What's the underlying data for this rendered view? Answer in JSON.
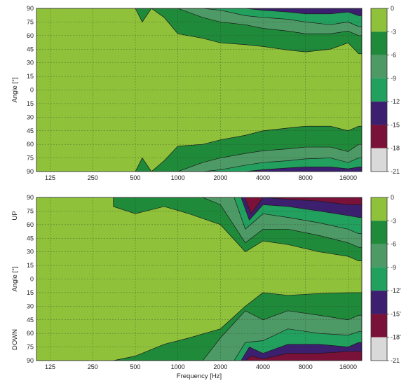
{
  "chart_data": [
    {
      "type": "heatmap",
      "subtype": "filled-contour directivity map",
      "title": "",
      "xlabel": "",
      "ylabel": "Angle [°]",
      "y_side_labels": [],
      "x_scale": "log",
      "xlim": [
        100,
        20000
      ],
      "ylim": [
        -90,
        90
      ],
      "x_ticks": [
        "125",
        "250",
        "500",
        "1000",
        "2000",
        "4000",
        "8000",
        "16000"
      ],
      "y_ticks": [
        "90",
        "75",
        "60",
        "45",
        "30",
        "15",
        "0",
        "15",
        "30",
        "45",
        "60",
        "75",
        "90"
      ],
      "grid": true,
      "colorbar": {
        "position": "right",
        "levels_db": [
          0,
          -3,
          -6,
          -9,
          -12,
          -15,
          -18,
          -21
        ],
        "labels": [
          "0",
          "-3",
          "-6",
          "-9",
          "-12",
          "-15",
          "-18",
          "-21"
        ],
        "colors": [
          "#8fc23a",
          "#1f8a3a",
          "#4e9a66",
          "#22a05e",
          "#3c1f6e",
          "#7a1138",
          "#d9d9d9"
        ]
      },
      "series": [
        {
          "level_db": -3,
          "x_hz": [
            500,
            560,
            650,
            800,
            1000,
            1500,
            2000,
            3000,
            4000,
            6000,
            8000,
            12000,
            16000,
            19000
          ],
          "upper_boundary_deg": [
            90,
            75,
            90,
            80,
            62,
            57,
            52,
            50,
            48,
            44,
            42,
            45,
            52,
            40
          ],
          "lower_boundary_deg": [
            -90,
            -75,
            -90,
            -78,
            -62,
            -60,
            -55,
            -50,
            -45,
            -42,
            -40,
            -40,
            -45,
            -40
          ]
        },
        {
          "level_db": -6,
          "x_hz": [
            1000,
            1500,
            2000,
            3000,
            4000,
            6000,
            8000,
            12000,
            16000,
            19000
          ],
          "upper_boundary_deg": [
            90,
            80,
            75,
            72,
            68,
            65,
            62,
            62,
            65,
            60
          ],
          "lower_boundary_deg": [
            -90,
            -80,
            -75,
            -70,
            -67,
            -65,
            -63,
            -63,
            -68,
            -60
          ]
        },
        {
          "level_db": -9,
          "x_hz": [
            1500,
            2000,
            3000,
            4000,
            6000,
            8000,
            12000,
            16000,
            19000
          ],
          "upper_boundary_deg": [
            90,
            88,
            82,
            80,
            78,
            75,
            72,
            75,
            70
          ],
          "lower_boundary_deg": [
            -90,
            -88,
            -83,
            -80,
            -78,
            -76,
            -75,
            -80,
            -75
          ]
        },
        {
          "level_db": -12,
          "x_hz": [
            3000,
            4000,
            6000,
            8000,
            12000,
            16000,
            19000
          ],
          "upper_boundary_deg": [
            90,
            88,
            86,
            84,
            84,
            86,
            82
          ],
          "lower_boundary_deg": [
            -90,
            -88,
            -86,
            -85,
            -85,
            -87,
            -85
          ]
        }
      ]
    },
    {
      "type": "heatmap",
      "subtype": "filled-contour directivity map",
      "title": "",
      "xlabel": "Frequency [Hz]",
      "ylabel": "Angle [°]",
      "y_side_labels": [
        "UP",
        "DOWN"
      ],
      "x_scale": "log",
      "xlim": [
        100,
        20000
      ],
      "ylim": [
        -90,
        90
      ],
      "x_ticks": [
        "125",
        "250",
        "500",
        "1000",
        "2000",
        "4000",
        "8000",
        "16000"
      ],
      "y_ticks": [
        "90",
        "75",
        "60",
        "45",
        "30",
        "15",
        "0",
        "15",
        "30",
        "45",
        "60",
        "75",
        "90"
      ],
      "grid": true,
      "colorbar": {
        "position": "right",
        "levels_db": [
          0,
          -3,
          -6,
          -9,
          -12,
          -15,
          -18,
          -21
        ],
        "labels": [
          "0",
          "-3",
          "-6",
          "-9",
          "-12'",
          "-15'",
          "-18'",
          "-21"
        ],
        "colors": [
          "#8fc23a",
          "#1f8a3a",
          "#4e9a66",
          "#22a05e",
          "#3c1f6e",
          "#7a1138",
          "#d9d9d9"
        ]
      },
      "series": [
        {
          "level_db": -3,
          "x_hz": [
            350,
            500,
            800,
            1200,
            2000,
            3000,
            4000,
            6000,
            10000,
            16000,
            19000
          ],
          "upper_boundary_deg": [
            80,
            72,
            80,
            72,
            60,
            30,
            42,
            38,
            30,
            25,
            20
          ],
          "lower_boundary_deg": [
            -90,
            -85,
            -72,
            -65,
            -55,
            -30,
            -15,
            -18,
            -16,
            -15,
            -15
          ]
        },
        {
          "level_db": -6,
          "x_hz": [
            1500,
            2000,
            3000,
            4000,
            6000,
            10000,
            16000,
            19000
          ],
          "upper_boundary_deg": [
            90,
            82,
            40,
            55,
            55,
            48,
            40,
            35
          ],
          "lower_boundary_deg": [
            -90,
            -65,
            -35,
            -45,
            -35,
            -40,
            -45,
            -40
          ]
        },
        {
          "level_db": -9,
          "x_hz": [
            2500,
            3000,
            4000,
            6000,
            10000,
            16000,
            19000
          ],
          "upper_boundary_deg": [
            90,
            55,
            72,
            68,
            62,
            55,
            50
          ],
          "lower_boundary_deg": [
            -90,
            -70,
            -68,
            -55,
            -60,
            -62,
            -58
          ]
        },
        {
          "level_db": -12,
          "x_hz": [
            2800,
            3200,
            4000,
            6000,
            10000,
            16000,
            19000
          ],
          "upper_boundary_deg": [
            90,
            65,
            82,
            80,
            75,
            70,
            68
          ],
          "lower_boundary_deg": [
            -90,
            -75,
            -82,
            -72,
            -72,
            -75,
            -70
          ]
        },
        {
          "level_db": -15,
          "x_hz": [
            3000,
            3300,
            4000,
            6000,
            10000,
            16000
          ],
          "upper_boundary_deg": [
            88,
            72,
            90,
            88,
            86,
            82
          ],
          "lower_boundary_deg": [
            -90,
            -85,
            -88,
            -82,
            -82,
            -80
          ]
        }
      ]
    }
  ]
}
